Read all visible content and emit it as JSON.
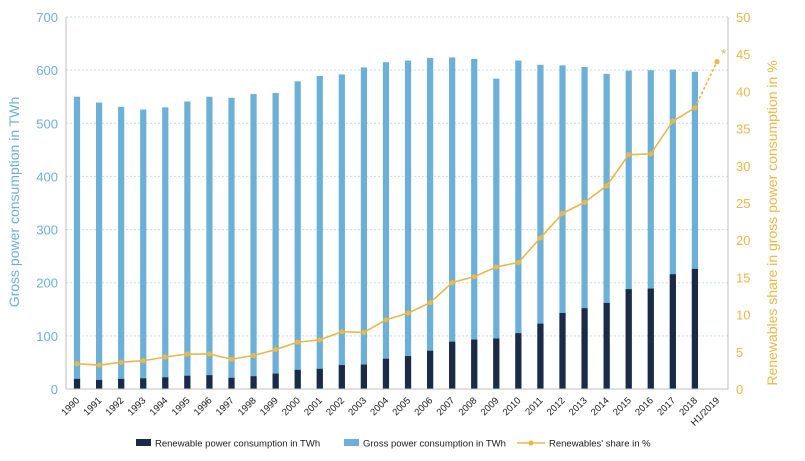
{
  "chart_data": {
    "type": "bar",
    "categories": [
      "1990",
      "1991",
      "1992",
      "1993",
      "1994",
      "1995",
      "1996",
      "1997",
      "1998",
      "1999",
      "2000",
      "2001",
      "2002",
      "2003",
      "2004",
      "2005",
      "2006",
      "2007",
      "2008",
      "2009",
      "2010",
      "2011",
      "2012",
      "2013",
      "2014",
      "2015",
      "2016",
      "2017",
      "2018",
      "H1/2019"
    ],
    "series": [
      {
        "name": "Renewable power consumption in TWh",
        "kind": "bar",
        "axis": "left",
        "color": "#1b2a47",
        "values": [
          19,
          17,
          19,
          20,
          22,
          25,
          26,
          21,
          24,
          29,
          36,
          38,
          45,
          46,
          57,
          62,
          72,
          89,
          93,
          95,
          105,
          123,
          143,
          152,
          162,
          188,
          189,
          216,
          226,
          null
        ]
      },
      {
        "name": "Gross power consumption in TWh",
        "kind": "bar",
        "axis": "left",
        "color": "#6cb0d8",
        "values": [
          550,
          539,
          531,
          526,
          530,
          541,
          550,
          548,
          555,
          557,
          579,
          589,
          592,
          605,
          615,
          618,
          623,
          624,
          621,
          584,
          618,
          610,
          609,
          606,
          593,
          599,
          600,
          601,
          597,
          null
        ]
      },
      {
        "name": "Renewables' share in %",
        "kind": "line",
        "axis": "right",
        "color": "#e8b84a",
        "values": [
          3.4,
          3.2,
          3.6,
          3.8,
          4.3,
          4.7,
          4.7,
          4.0,
          4.5,
          5.3,
          6.3,
          6.6,
          7.7,
          7.6,
          9.3,
          10.2,
          11.6,
          14.3,
          15.1,
          16.4,
          17.0,
          20.3,
          23.6,
          25.1,
          27.3,
          31.5,
          31.6,
          36.0,
          37.8,
          44.0
        ]
      }
    ],
    "annotation": "*",
    "xlabel": "",
    "ylabel": "Gross power consumption in TWh",
    "ylabel_right": "Renewables share in gross power consumption in %",
    "ylim": [
      0,
      700
    ],
    "ylim_right": [
      0,
      50
    ],
    "yticks": [
      0,
      100,
      200,
      300,
      400,
      500,
      600,
      700
    ],
    "yticks_right": [
      0,
      5,
      10,
      15,
      20,
      25,
      30,
      35,
      40,
      45,
      50
    ],
    "grid": true,
    "legend": "bottom",
    "colors": {
      "left_axis_text": "#6cb0d8",
      "right_axis_text": "#e8b84a",
      "grid": "#c9dbe6",
      "axis_line": "#bfbfbf"
    }
  }
}
